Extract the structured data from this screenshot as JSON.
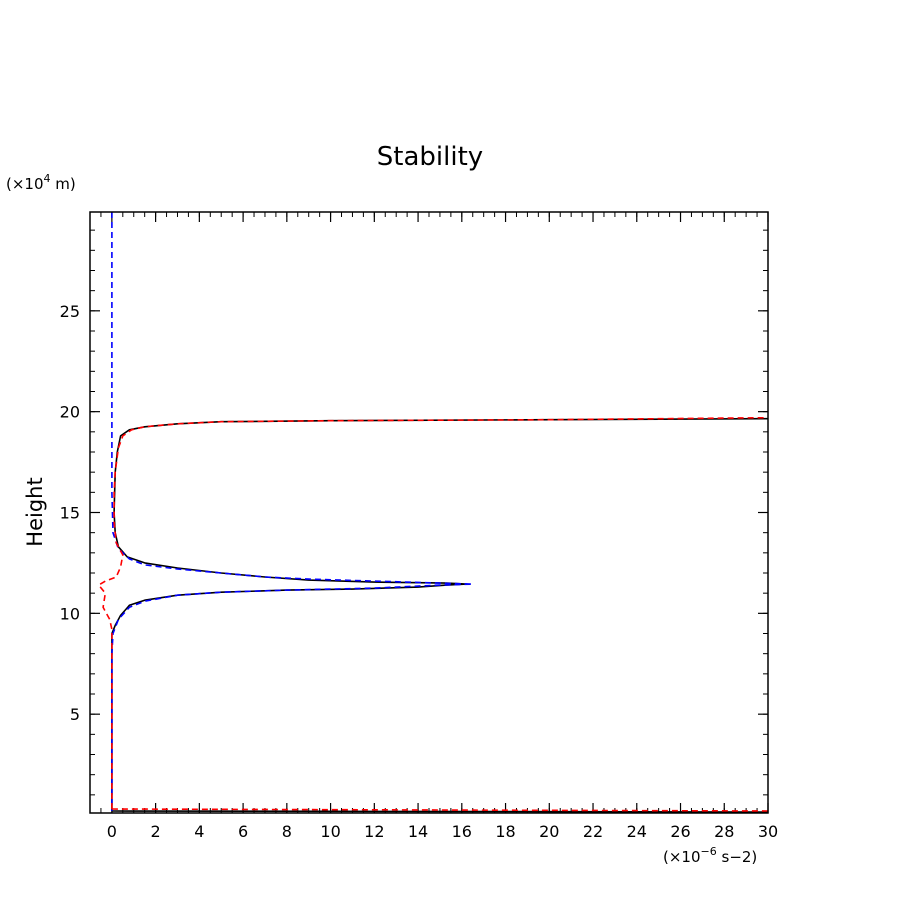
{
  "chart_data": {
    "type": "line",
    "title": "Stability",
    "xlabel": "",
    "ylabel": "Height",
    "x_unit": {
      "prefix": "(×10",
      "exp": "−6",
      "suffix": " s−2)"
    },
    "y_unit": {
      "prefix": "(×10",
      "exp": "4",
      "suffix": " m)"
    },
    "xlim": [
      -1,
      30
    ],
    "ylim": [
      0.1,
      29.9
    ],
    "x_ticks": [
      0,
      2,
      4,
      6,
      8,
      10,
      12,
      14,
      16,
      18,
      20,
      22,
      24,
      26,
      28,
      30
    ],
    "y_ticks": [
      5,
      10,
      15,
      20,
      25
    ],
    "x_minor_step": 0.5,
    "y_minor_step": 1,
    "grid": false,
    "series": [
      {
        "color": "#000000",
        "style": "solid",
        "segments": [
          [
            [
              0.0,
              0.2
            ],
            [
              0.0,
              9.0
            ],
            [
              0.15,
              9.4
            ],
            [
              0.4,
              9.9
            ],
            [
              0.8,
              10.4
            ],
            [
              1.5,
              10.65
            ],
            [
              3,
              10.9
            ],
            [
              5,
              11.05
            ],
            [
              8,
              11.15
            ],
            [
              11,
              11.2
            ],
            [
              14,
              11.3
            ],
            [
              15.3,
              11.4
            ],
            [
              16.2,
              11.45
            ],
            [
              15.3,
              11.5
            ],
            [
              12,
              11.55
            ],
            [
              9,
              11.65
            ],
            [
              7,
              11.8
            ],
            [
              5,
              12.0
            ],
            [
              3,
              12.25
            ],
            [
              1.5,
              12.5
            ],
            [
              0.7,
              12.8
            ],
            [
              0.3,
              13.3
            ],
            [
              0.15,
              14.0
            ],
            [
              0.1,
              15.0
            ],
            [
              0.15,
              17.0
            ],
            [
              0.25,
              18.0
            ],
            [
              0.4,
              18.8
            ],
            [
              0.8,
              19.1
            ],
            [
              1.5,
              19.25
            ],
            [
              3,
              19.4
            ],
            [
              5,
              19.5
            ],
            [
              10,
              19.55
            ],
            [
              20,
              19.6
            ],
            [
              30,
              19.65
            ]
          ],
          [
            [
              0.0,
              0.2
            ],
            [
              30,
              0.15
            ]
          ]
        ]
      },
      {
        "color": "#0000ff",
        "style": "dashed",
        "segments": [
          [
            [
              0.0,
              29.9
            ],
            [
              0.0,
              20.0
            ],
            [
              0.0,
              16.0
            ],
            [
              0.05,
              14.0
            ],
            [
              0.3,
              13.2
            ],
            [
              0.8,
              12.7
            ],
            [
              1.5,
              12.4
            ],
            [
              3,
              12.2
            ],
            [
              5,
              12.0
            ],
            [
              7,
              11.8
            ],
            [
              9,
              11.7
            ],
            [
              12,
              11.6
            ],
            [
              15,
              11.5
            ],
            [
              16.5,
              11.45
            ],
            [
              15,
              11.4
            ],
            [
              12,
              11.25
            ],
            [
              8,
              11.15
            ],
            [
              5,
              11.05
            ],
            [
              3,
              10.9
            ],
            [
              1.5,
              10.6
            ],
            [
              0.8,
              10.3
            ],
            [
              0.3,
              9.7
            ],
            [
              0.05,
              9.0
            ],
            [
              0.0,
              8.0
            ],
            [
              0.0,
              0.2
            ]
          ]
        ]
      },
      {
        "color": "#ff0000",
        "style": "dashed",
        "segments": [
          [
            [
              0.0,
              0.3
            ],
            [
              0.0,
              9.2
            ],
            [
              -0.1,
              9.7
            ],
            [
              -0.4,
              10.3
            ],
            [
              -0.3,
              11.0
            ],
            [
              -0.6,
              11.4
            ],
            [
              -0.3,
              11.6
            ],
            [
              0.2,
              11.8
            ],
            [
              0.4,
              12.3
            ],
            [
              0.5,
              12.9
            ],
            [
              0.2,
              13.5
            ],
            [
              0.1,
              14.5
            ],
            [
              0.1,
              16.0
            ],
            [
              0.15,
              17.0
            ],
            [
              0.3,
              18.2
            ],
            [
              0.5,
              18.8
            ],
            [
              0.9,
              19.1
            ],
            [
              1.5,
              19.25
            ],
            [
              3,
              19.4
            ],
            [
              5,
              19.5
            ],
            [
              10,
              19.55
            ],
            [
              20,
              19.6
            ],
            [
              30,
              19.7
            ]
          ],
          [
            [
              0.0,
              0.3
            ],
            [
              30,
              0.2
            ]
          ]
        ]
      }
    ]
  }
}
